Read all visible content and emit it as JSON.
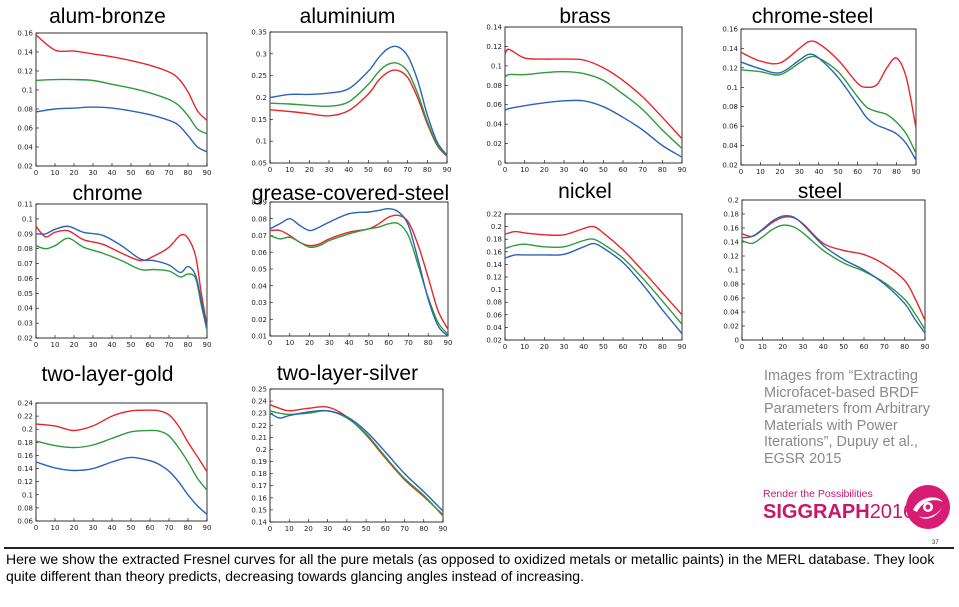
{
  "colors": {
    "red": "#e8262b",
    "green": "#2f9a3b",
    "blue": "#2a63b8"
  },
  "chart_data": [
    {
      "type": "line",
      "title": "alum-bronze",
      "xlim": [
        0,
        90
      ],
      "ylim": [
        0.02,
        0.16
      ],
      "xticks": [
        0,
        10,
        20,
        30,
        40,
        50,
        60,
        70,
        80,
        90
      ],
      "yticks": [
        0.02,
        0.04,
        0.06,
        0.08,
        0.1,
        0.12,
        0.14,
        0.16
      ],
      "ytick_labels": [
        "0.02",
        "0.04",
        "0.06",
        "0.08",
        "0.1",
        "0.12",
        "0.14",
        "0.16"
      ],
      "x": [
        0,
        10,
        20,
        30,
        40,
        50,
        60,
        70,
        75,
        80,
        85,
        90
      ],
      "series": [
        {
          "color": "red",
          "values": [
            0.158,
            0.142,
            0.141,
            0.138,
            0.135,
            0.131,
            0.126,
            0.119,
            0.112,
            0.098,
            0.078,
            0.068
          ]
        },
        {
          "color": "green",
          "values": [
            0.11,
            0.111,
            0.111,
            0.11,
            0.106,
            0.102,
            0.097,
            0.09,
            0.084,
            0.073,
            0.059,
            0.054
          ]
        },
        {
          "color": "blue",
          "values": [
            0.077,
            0.08,
            0.081,
            0.082,
            0.081,
            0.078,
            0.074,
            0.068,
            0.063,
            0.052,
            0.04,
            0.035
          ]
        }
      ]
    },
    {
      "type": "line",
      "title": "aluminium",
      "xlim": [
        0,
        90
      ],
      "ylim": [
        0.05,
        0.35
      ],
      "xticks": [
        0,
        10,
        20,
        30,
        40,
        50,
        60,
        70,
        80,
        90
      ],
      "yticks": [
        0.05,
        0.1,
        0.15,
        0.2,
        0.25,
        0.3,
        0.35
      ],
      "ytick_labels": [
        "0.05",
        "0.1",
        "0.15",
        "0.2",
        "0.25",
        "0.3",
        "0.35"
      ],
      "x": [
        0,
        10,
        20,
        30,
        40,
        50,
        55,
        60,
        65,
        70,
        75,
        80,
        85,
        90
      ],
      "series": [
        {
          "color": "red",
          "values": [
            0.172,
            0.168,
            0.163,
            0.158,
            0.17,
            0.208,
            0.238,
            0.258,
            0.262,
            0.246,
            0.2,
            0.14,
            0.09,
            0.065
          ]
        },
        {
          "color": "green",
          "values": [
            0.187,
            0.185,
            0.182,
            0.18,
            0.19,
            0.23,
            0.258,
            0.276,
            0.278,
            0.26,
            0.21,
            0.145,
            0.092,
            0.066
          ]
        },
        {
          "color": "blue",
          "values": [
            0.2,
            0.207,
            0.207,
            0.21,
            0.22,
            0.26,
            0.29,
            0.312,
            0.316,
            0.295,
            0.24,
            0.16,
            0.098,
            0.068
          ]
        }
      ]
    },
    {
      "type": "line",
      "title": "brass",
      "xlim": [
        0,
        90
      ],
      "ylim": [
        0,
        0.14
      ],
      "xticks": [
        0,
        10,
        20,
        30,
        40,
        50,
        60,
        70,
        80,
        90
      ],
      "yticks": [
        0,
        0.02,
        0.04,
        0.06,
        0.08,
        0.1,
        0.12,
        0.14
      ],
      "ytick_labels": [
        "0",
        "0.02",
        "0.04",
        "0.06",
        "0.08",
        "0.1",
        "0.12",
        "0.14"
      ],
      "x": [
        0,
        2,
        10,
        20,
        30,
        40,
        50,
        60,
        70,
        80,
        90
      ],
      "series": [
        {
          "color": "red",
          "values": [
            0.112,
            0.117,
            0.108,
            0.107,
            0.107,
            0.106,
            0.098,
            0.085,
            0.068,
            0.047,
            0.025
          ]
        },
        {
          "color": "green",
          "values": [
            0.088,
            0.091,
            0.091,
            0.093,
            0.094,
            0.092,
            0.085,
            0.071,
            0.055,
            0.034,
            0.015
          ]
        },
        {
          "color": "blue",
          "values": [
            0.054,
            0.056,
            0.059,
            0.062,
            0.064,
            0.064,
            0.058,
            0.047,
            0.034,
            0.018,
            0.006
          ]
        }
      ]
    },
    {
      "type": "line",
      "title": "chrome-steel",
      "xlim": [
        0,
        90
      ],
      "ylim": [
        0.02,
        0.16
      ],
      "xticks": [
        0,
        10,
        20,
        30,
        40,
        50,
        60,
        70,
        80,
        90
      ],
      "yticks": [
        0.02,
        0.04,
        0.06,
        0.08,
        0.1,
        0.12,
        0.14,
        0.16
      ],
      "ytick_labels": [
        "0.02",
        "0.04",
        "0.06",
        "0.08",
        "0.1",
        "0.12",
        "0.14",
        "0.16"
      ],
      "x": [
        0,
        10,
        20,
        30,
        35,
        40,
        50,
        60,
        65,
        70,
        75,
        80,
        85,
        90
      ],
      "series": [
        {
          "color": "red",
          "values": [
            0.136,
            0.127,
            0.125,
            0.14,
            0.147,
            0.145,
            0.128,
            0.104,
            0.1,
            0.103,
            0.12,
            0.13,
            0.11,
            0.058
          ]
        },
        {
          "color": "green",
          "values": [
            0.118,
            0.116,
            0.113,
            0.125,
            0.131,
            0.13,
            0.116,
            0.09,
            0.079,
            0.075,
            0.072,
            0.064,
            0.052,
            0.032
          ]
        },
        {
          "color": "blue",
          "values": [
            0.126,
            0.119,
            0.115,
            0.128,
            0.134,
            0.13,
            0.11,
            0.082,
            0.068,
            0.061,
            0.057,
            0.052,
            0.042,
            0.025
          ]
        }
      ]
    },
    {
      "type": "line",
      "title": "chrome",
      "xlim": [
        0,
        90
      ],
      "ylim": [
        0.02,
        0.11
      ],
      "xticks": [
        0,
        10,
        20,
        30,
        40,
        50,
        60,
        70,
        80,
        90
      ],
      "yticks": [
        0.02,
        0.03,
        0.04,
        0.05,
        0.06,
        0.07,
        0.08,
        0.09,
        0.1,
        0.11
      ],
      "ytick_labels": [
        "0.02",
        "0.03",
        "0.04",
        "0.05",
        "0.06",
        "0.07",
        "0.08",
        "0.09",
        "0.1",
        "0.11"
      ],
      "x": [
        0,
        5,
        10,
        17,
        25,
        35,
        45,
        55,
        62,
        70,
        76,
        80,
        84,
        87,
        90
      ],
      "series": [
        {
          "color": "red",
          "values": [
            0.095,
            0.088,
            0.091,
            0.092,
            0.086,
            0.083,
            0.077,
            0.072,
            0.075,
            0.081,
            0.089,
            0.087,
            0.075,
            0.05,
            0.028
          ]
        },
        {
          "color": "green",
          "values": [
            0.082,
            0.08,
            0.082,
            0.087,
            0.081,
            0.077,
            0.072,
            0.066,
            0.066,
            0.065,
            0.061,
            0.063,
            0.06,
            0.042,
            0.025
          ]
        },
        {
          "color": "blue",
          "values": [
            0.09,
            0.09,
            0.093,
            0.095,
            0.091,
            0.089,
            0.082,
            0.073,
            0.072,
            0.069,
            0.064,
            0.068,
            0.062,
            0.045,
            0.027
          ]
        }
      ]
    },
    {
      "type": "line",
      "title": "grease-covered-steel",
      "xlim": [
        0,
        90
      ],
      "ylim": [
        0.01,
        0.09
      ],
      "xticks": [
        0,
        10,
        20,
        30,
        40,
        50,
        60,
        70,
        80,
        90
      ],
      "yticks": [
        0.01,
        0.02,
        0.03,
        0.04,
        0.05,
        0.06,
        0.07,
        0.08,
        0.09
      ],
      "ytick_labels": [
        "0.01",
        "0.02",
        "0.03",
        "0.04",
        "0.05",
        "0.06",
        "0.07",
        "0.08",
        "0.09"
      ],
      "x": [
        0,
        5,
        10,
        15,
        20,
        25,
        30,
        40,
        50,
        55,
        60,
        65,
        70,
        75,
        80,
        85,
        90
      ],
      "series": [
        {
          "color": "red",
          "values": [
            0.073,
            0.073,
            0.07,
            0.066,
            0.064,
            0.065,
            0.068,
            0.072,
            0.074,
            0.077,
            0.081,
            0.082,
            0.078,
            0.064,
            0.045,
            0.025,
            0.014
          ]
        },
        {
          "color": "green",
          "values": [
            0.07,
            0.068,
            0.069,
            0.066,
            0.063,
            0.064,
            0.067,
            0.071,
            0.074,
            0.075,
            0.077,
            0.077,
            0.07,
            0.052,
            0.033,
            0.018,
            0.011
          ]
        },
        {
          "color": "blue",
          "values": [
            0.074,
            0.077,
            0.08,
            0.076,
            0.073,
            0.075,
            0.078,
            0.083,
            0.084,
            0.085,
            0.086,
            0.084,
            0.076,
            0.055,
            0.032,
            0.016,
            0.01
          ]
        }
      ]
    },
    {
      "type": "line",
      "title": "nickel",
      "xlim": [
        0,
        90
      ],
      "ylim": [
        0.02,
        0.22
      ],
      "xticks": [
        0,
        10,
        20,
        30,
        40,
        50,
        60,
        70,
        80,
        90
      ],
      "yticks": [
        0.02,
        0.04,
        0.06,
        0.08,
        0.1,
        0.12,
        0.14,
        0.16,
        0.18,
        0.2,
        0.22
      ],
      "ytick_labels": [
        "0.02",
        "0.04",
        "0.06",
        "0.08",
        "0.1",
        "0.12",
        "0.14",
        "0.16",
        "0.18",
        "0.2",
        "0.22"
      ],
      "x": [
        0,
        5,
        10,
        20,
        30,
        40,
        45,
        50,
        60,
        70,
        80,
        90
      ],
      "series": [
        {
          "color": "red",
          "values": [
            0.188,
            0.192,
            0.19,
            0.187,
            0.187,
            0.197,
            0.2,
            0.19,
            0.163,
            0.13,
            0.095,
            0.06
          ]
        },
        {
          "color": "green",
          "values": [
            0.165,
            0.17,
            0.172,
            0.168,
            0.168,
            0.178,
            0.18,
            0.172,
            0.15,
            0.118,
            0.082,
            0.045
          ]
        },
        {
          "color": "blue",
          "values": [
            0.15,
            0.155,
            0.155,
            0.155,
            0.156,
            0.168,
            0.173,
            0.166,
            0.143,
            0.108,
            0.068,
            0.03
          ]
        }
      ]
    },
    {
      "type": "line",
      "title": "steel",
      "xlim": [
        0,
        90
      ],
      "ylim": [
        0,
        0.2
      ],
      "xticks": [
        0,
        10,
        20,
        30,
        40,
        50,
        60,
        70,
        80,
        90
      ],
      "yticks": [
        0,
        0.02,
        0.04,
        0.06,
        0.08,
        0.1,
        0.12,
        0.14,
        0.16,
        0.18,
        0.2
      ],
      "ytick_labels": [
        "0",
        "0.02",
        "0.04",
        "0.06",
        "0.08",
        "0.1",
        "0.12",
        "0.14",
        "0.16",
        "0.18",
        "0.2"
      ],
      "x": [
        0,
        5,
        10,
        15,
        20,
        25,
        30,
        40,
        50,
        60,
        70,
        80,
        85,
        90
      ],
      "series": [
        {
          "color": "red",
          "values": [
            0.152,
            0.148,
            0.157,
            0.168,
            0.175,
            0.175,
            0.166,
            0.138,
            0.128,
            0.122,
            0.108,
            0.085,
            0.06,
            0.028
          ]
        },
        {
          "color": "green",
          "values": [
            0.142,
            0.138,
            0.147,
            0.158,
            0.164,
            0.162,
            0.153,
            0.128,
            0.11,
            0.098,
            0.082,
            0.058,
            0.038,
            0.015
          ]
        },
        {
          "color": "blue",
          "values": [
            0.146,
            0.148,
            0.158,
            0.17,
            0.177,
            0.176,
            0.165,
            0.135,
            0.115,
            0.1,
            0.08,
            0.052,
            0.03,
            0.01
          ]
        }
      ]
    },
    {
      "type": "line",
      "title": "two-layer-gold",
      "xlim": [
        0,
        90
      ],
      "ylim": [
        0.06,
        0.24
      ],
      "xticks": [
        0,
        10,
        20,
        30,
        40,
        50,
        60,
        70,
        80,
        90
      ],
      "yticks": [
        0.06,
        0.08,
        0.1,
        0.12,
        0.14,
        0.16,
        0.18,
        0.2,
        0.22,
        0.24
      ],
      "ytick_labels": [
        "0.06",
        "0.08",
        "0.1",
        "0.12",
        "0.14",
        "0.16",
        "0.18",
        "0.2",
        "0.22",
        "0.24"
      ],
      "x": [
        0,
        10,
        20,
        30,
        40,
        50,
        60,
        65,
        70,
        75,
        80,
        85,
        90
      ],
      "series": [
        {
          "color": "red",
          "values": [
            0.208,
            0.205,
            0.198,
            0.205,
            0.22,
            0.228,
            0.229,
            0.228,
            0.222,
            0.205,
            0.18,
            0.158,
            0.135
          ]
        },
        {
          "color": "green",
          "values": [
            0.182,
            0.175,
            0.172,
            0.176,
            0.186,
            0.196,
            0.198,
            0.197,
            0.19,
            0.172,
            0.15,
            0.125,
            0.107
          ]
        },
        {
          "color": "blue",
          "values": [
            0.15,
            0.141,
            0.137,
            0.14,
            0.15,
            0.157,
            0.152,
            0.146,
            0.136,
            0.12,
            0.1,
            0.083,
            0.07
          ]
        }
      ]
    },
    {
      "type": "line",
      "title": "two-layer-silver",
      "xlim": [
        0,
        90
      ],
      "ylim": [
        0.14,
        0.25
      ],
      "xticks": [
        0,
        10,
        20,
        30,
        40,
        50,
        60,
        70,
        80,
        90
      ],
      "yticks": [
        0.14,
        0.15,
        0.16,
        0.17,
        0.18,
        0.19,
        0.2,
        0.21,
        0.22,
        0.23,
        0.24,
        0.25
      ],
      "ytick_labels": [
        "0.14",
        "0.15",
        "0.16",
        "0.17",
        "0.18",
        "0.19",
        "0.2",
        "0.21",
        "0.22",
        "0.23",
        "0.24",
        "0.25"
      ],
      "x": [
        0,
        5,
        10,
        20,
        30,
        40,
        50,
        60,
        70,
        80,
        90
      ],
      "series": [
        {
          "color": "red",
          "values": [
            0.237,
            0.234,
            0.232,
            0.234,
            0.235,
            0.227,
            0.212,
            0.193,
            0.175,
            0.161,
            0.146
          ]
        },
        {
          "color": "green",
          "values": [
            0.232,
            0.23,
            0.229,
            0.23,
            0.232,
            0.226,
            0.213,
            0.194,
            0.176,
            0.162,
            0.145
          ]
        },
        {
          "color": "blue",
          "values": [
            0.23,
            0.226,
            0.228,
            0.231,
            0.232,
            0.227,
            0.215,
            0.198,
            0.18,
            0.165,
            0.149
          ]
        }
      ]
    }
  ],
  "credit_lines": [
    "Images from “Extracting",
    "Microfacet-based BRDF",
    "Parameters from Arbitrary",
    "Materials with Power",
    "Iterations”, Dupuy et al.,",
    "EGSR 2015"
  ],
  "branding": {
    "tagline": "Render the Possibilities",
    "name_bold": "SIGGRAPH",
    "name_year": "2016"
  },
  "page_number": "37",
  "caption": "Here we show the extracted Fresnel curves for all the pure metals (as opposed to oxidized metals or metallic paints) in the MERL database. They look quite different than theory predicts, decreasing towards glancing angles instead of increasing."
}
